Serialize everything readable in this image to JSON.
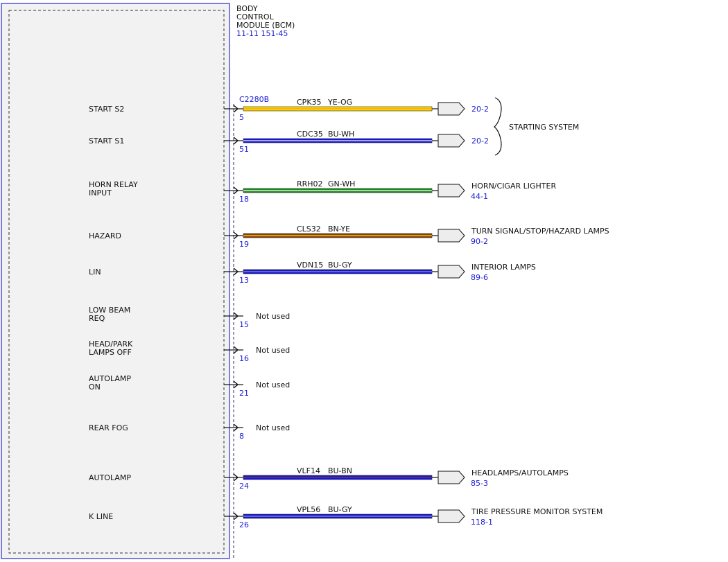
{
  "module": {
    "title_lines": [
      "BODY",
      "CONTROL",
      "MODULE (BCM)"
    ],
    "refs": "11-11  151-45",
    "connector": "C2280B"
  },
  "colors": {
    "box_border": "#2a2ad0",
    "box_fill": "#f2f2f2",
    "ref_text": "#1a1ad6",
    "YE": "#ffe000",
    "OG": "#ff9a00",
    "BU": "#1515e0",
    "WH": "#ffffff",
    "GN": "#1e8c1e",
    "BN": "#8b4010",
    "GY": "#9a9a9a"
  },
  "pins": [
    {
      "label": [
        "START S2"
      ],
      "pin": "5",
      "circuit": "CPK35",
      "wire": "YE-OG",
      "base": "YE",
      "stripe": "OG",
      "dest_ref": "20-2",
      "dest": "",
      "dest_ref_below": ""
    },
    {
      "label": [
        "START S1"
      ],
      "pin": "51",
      "circuit": "CDC35",
      "wire": "BU-WH",
      "base": "BU",
      "stripe": "WH",
      "dest_ref": "20-2",
      "dest": "",
      "dest_ref_below": ""
    },
    {
      "label": [
        "HORN RELAY",
        "INPUT"
      ],
      "pin": "18",
      "circuit": "RRH02",
      "wire": "GN-WH",
      "base": "GN",
      "stripe": "WH",
      "dest_ref": "",
      "dest": "HORN/CIGAR LIGHTER",
      "dest_ref_below": "44-1"
    },
    {
      "label": [
        "HAZARD"
      ],
      "pin": "19",
      "circuit": "CLS32",
      "wire": "BN-YE",
      "base": "BN",
      "stripe": "YE",
      "dest_ref": "",
      "dest": "TURN SIGNAL/STOP/HAZARD LAMPS",
      "dest_ref_below": "90-2"
    },
    {
      "label": [
        "LIN"
      ],
      "pin": "13",
      "circuit": "VDN15",
      "wire": "BU-GY",
      "base": "BU",
      "stripe": "GY",
      "dest_ref": "",
      "dest": "INTERIOR LAMPS",
      "dest_ref_below": "89-6"
    },
    {
      "label": [
        "LOW BEAM",
        "REQ"
      ],
      "pin": "15",
      "unused": "Not used"
    },
    {
      "label": [
        "HEAD/PARK",
        "LAMPS OFF"
      ],
      "pin": "16",
      "unused": "Not used"
    },
    {
      "label": [
        "AUTOLAMP",
        "ON"
      ],
      "pin": "21",
      "unused": "Not used"
    },
    {
      "label": [
        "REAR FOG"
      ],
      "pin": "8",
      "unused": "Not used"
    },
    {
      "label": [
        "AUTOLAMP"
      ],
      "pin": "24",
      "circuit": "VLF14",
      "wire": "BU-BN",
      "base": "BU",
      "stripe": "BN",
      "dest_ref": "",
      "dest": "HEADLAMPS/AUTOLAMPS",
      "dest_ref_below": "85-3"
    },
    {
      "label": [
        "K LINE"
      ],
      "pin": "26",
      "circuit": "VPL56",
      "wire": "BU-GY",
      "base": "BU",
      "stripe": "GY",
      "dest_ref": "",
      "dest": "TIRE PRESSURE MONITOR SYSTEM",
      "dest_ref_below": "118-1"
    }
  ],
  "group": {
    "label": "STARTING SYSTEM"
  }
}
